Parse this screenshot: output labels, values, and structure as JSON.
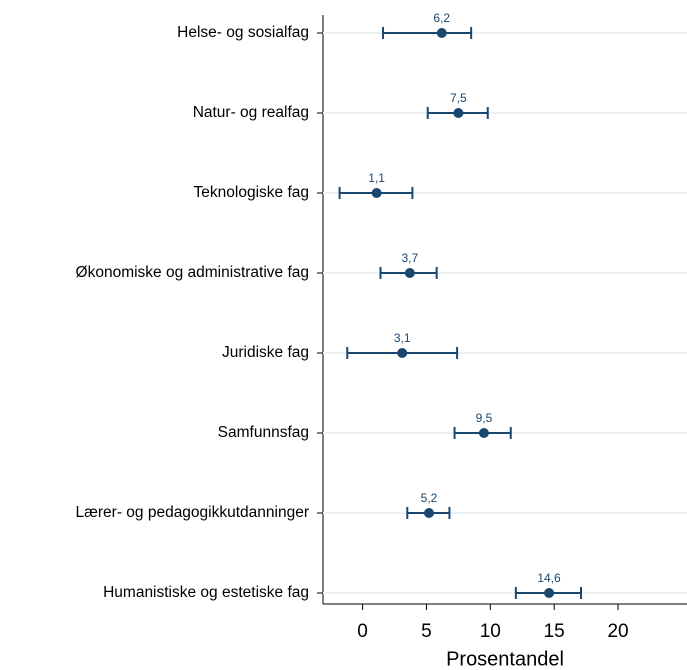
{
  "chart_data": {
    "type": "dot-errorbar",
    "categories": [
      "Helse- og sosialfag",
      "Natur- og realfag",
      "Teknologiske fag",
      "Økonomiske og administrative fag",
      "Juridiske fag",
      "Samfunnsfag",
      "Lærer- og pedagogikkutdanninger",
      "Humanistiske og estetiske fag"
    ],
    "values": [
      6.2,
      7.5,
      1.1,
      3.7,
      3.1,
      9.5,
      5.2,
      14.6
    ],
    "value_labels": [
      "6,2",
      "7,5",
      "1,1",
      "3,7",
      "3,1",
      "9,5",
      "5,2",
      "14,6"
    ],
    "lower": [
      1.6,
      5.1,
      -1.8,
      1.4,
      -1.2,
      7.2,
      3.5,
      12.0
    ],
    "upper": [
      8.5,
      9.8,
      3.9,
      5.8,
      7.4,
      11.6,
      6.8,
      17.1
    ],
    "color": "#1a476f",
    "xlabel": "Prosentandel",
    "xlim": [
      -3.1,
      25.4
    ],
    "xticks": [
      0,
      5,
      10,
      15,
      20
    ],
    "grid": true
  }
}
